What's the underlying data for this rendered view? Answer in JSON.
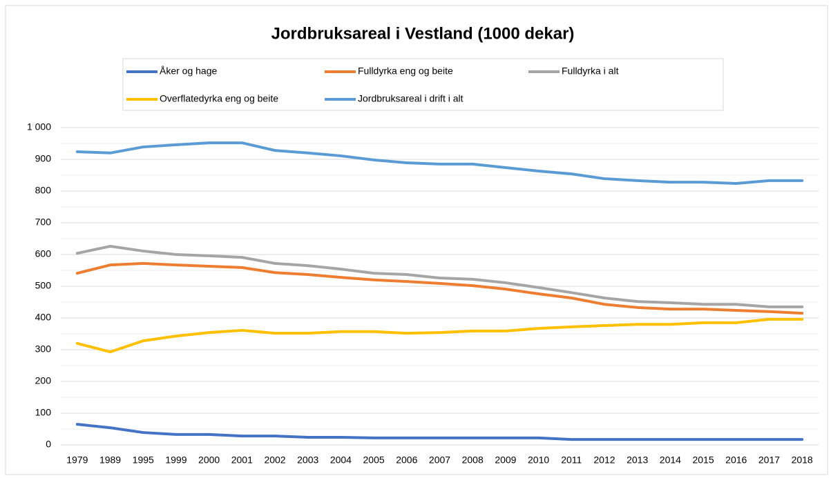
{
  "chart_data": {
    "type": "line",
    "title": "Jordbruksareal i Vestland (1000 dekar)",
    "categories": [
      "1979",
      "1989",
      "1995",
      "1999",
      "2000",
      "2001",
      "2002",
      "2003",
      "2004",
      "2005",
      "2006",
      "2007",
      "2008",
      "2009",
      "2010",
      "2011",
      "2012",
      "2013",
      "2014",
      "2015",
      "2016",
      "2017",
      "2018"
    ],
    "series": [
      {
        "name": "Åker og hage",
        "color": "#4472c4",
        "values": [
          65,
          54,
          39,
          33,
          33,
          28,
          28,
          24,
          24,
          22,
          22,
          22,
          22,
          22,
          22,
          17,
          17,
          17,
          17,
          17,
          17,
          17,
          17
        ]
      },
      {
        "name": "Fulldyrka eng og beite",
        "color": "#ed7d31",
        "values": [
          541,
          567,
          572,
          567,
          563,
          559,
          543,
          537,
          528,
          520,
          515,
          509,
          502,
          491,
          476,
          463,
          443,
          433,
          428,
          428,
          424,
          420,
          415
        ]
      },
      {
        "name": "Fulldyrka i alt",
        "color": "#a5a5a5",
        "values": [
          604,
          626,
          611,
          600,
          596,
          591,
          572,
          565,
          554,
          541,
          537,
          526,
          522,
          511,
          496,
          480,
          463,
          452,
          448,
          443,
          443,
          435,
          435
        ]
      },
      {
        "name": "Overflatedyrka eng og beite",
        "color": "#ffc000",
        "values": [
          320,
          293,
          328,
          343,
          354,
          361,
          352,
          352,
          357,
          357,
          352,
          354,
          359,
          359,
          367,
          372,
          376,
          380,
          380,
          385,
          385,
          396,
          396
        ]
      },
      {
        "name": "Jordbruksareal i drift i alt",
        "color": "#5b9bd5",
        "values": [
          924,
          920,
          939,
          946,
          952,
          952,
          928,
          920,
          911,
          898,
          889,
          885,
          885,
          874,
          863,
          854,
          839,
          833,
          828,
          828,
          824,
          833,
          833
        ]
      }
    ],
    "ylim": [
      0,
      1000
    ],
    "yticks": [
      0,
      100,
      200,
      300,
      400,
      500,
      600,
      700,
      800,
      900,
      {
        "value": 1000,
        "label": "1 000"
      }
    ],
    "yminorticks": [
      50,
      150,
      250,
      350,
      450,
      550,
      650,
      750,
      850,
      950
    ],
    "grid": true
  }
}
